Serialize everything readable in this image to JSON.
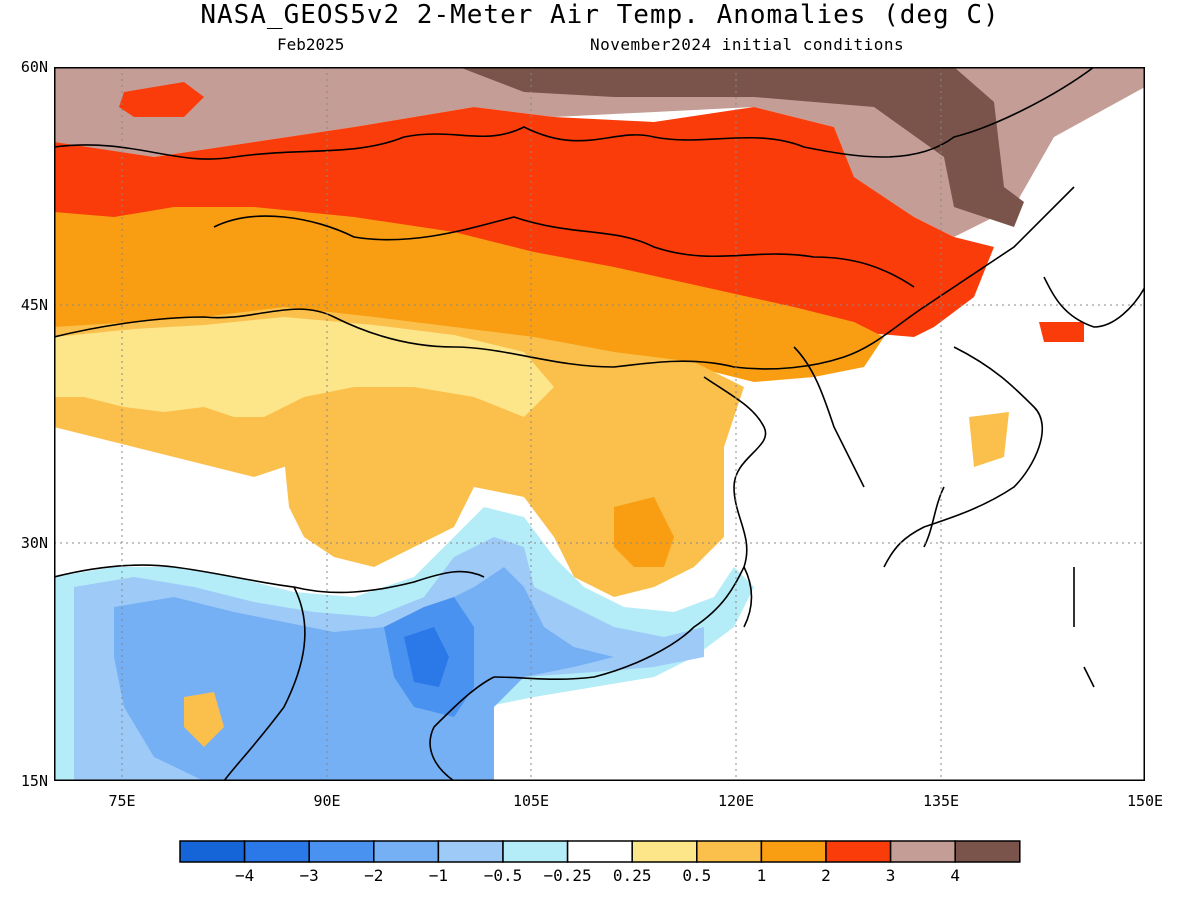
{
  "title": "NASA_GEOS5v2 2-Meter Air Temp. Anomalies (deg C)",
  "subtitle_left": "Feb2025",
  "subtitle_right": "November2024 initial conditions",
  "map": {
    "lon_range": [
      70,
      150
    ],
    "lat_range": [
      15,
      60
    ],
    "lat_labels": [
      "60N",
      "45N",
      "30N",
      "15N"
    ],
    "lon_labels": [
      "75E",
      "90E",
      "105E",
      "120E",
      "135E",
      "150E"
    ],
    "grid": "dotted",
    "regions_by_anomaly": [
      {
        "level": "3 to 4",
        "area": "Siberia north of Mongolia and Russian Far East"
      },
      {
        "level": "above 4",
        "area": "Far northeast corner near Sea of Okhotsk"
      },
      {
        "level": "2 to 3",
        "area": "Southern Siberia band and northeast China"
      },
      {
        "level": "1 to 2",
        "area": "Kazakhstan, Mongolia and northern China"
      },
      {
        "level": "0.25 to 1",
        "area": "Tibetan Plateau and central-east China"
      },
      {
        "level": "-0.5 to -3",
        "area": "India, Bangladesh, Myanmar and southwest China"
      }
    ]
  },
  "colorbar": {
    "colors": [
      "#1565d8",
      "#2b78e8",
      "#4a92f0",
      "#76b0f4",
      "#9ecaf8",
      "#b4edf7",
      "#ffffff",
      "#fde58a",
      "#fbc04b",
      "#f99e12",
      "#fa3c0a",
      "#c49e96",
      "#7a544a"
    ],
    "labels": [
      "−4",
      "−3",
      "−2",
      "−1",
      "−0.5",
      "−0.25",
      "0.25",
      "0.5",
      "1",
      "2",
      "3",
      "4"
    ]
  }
}
